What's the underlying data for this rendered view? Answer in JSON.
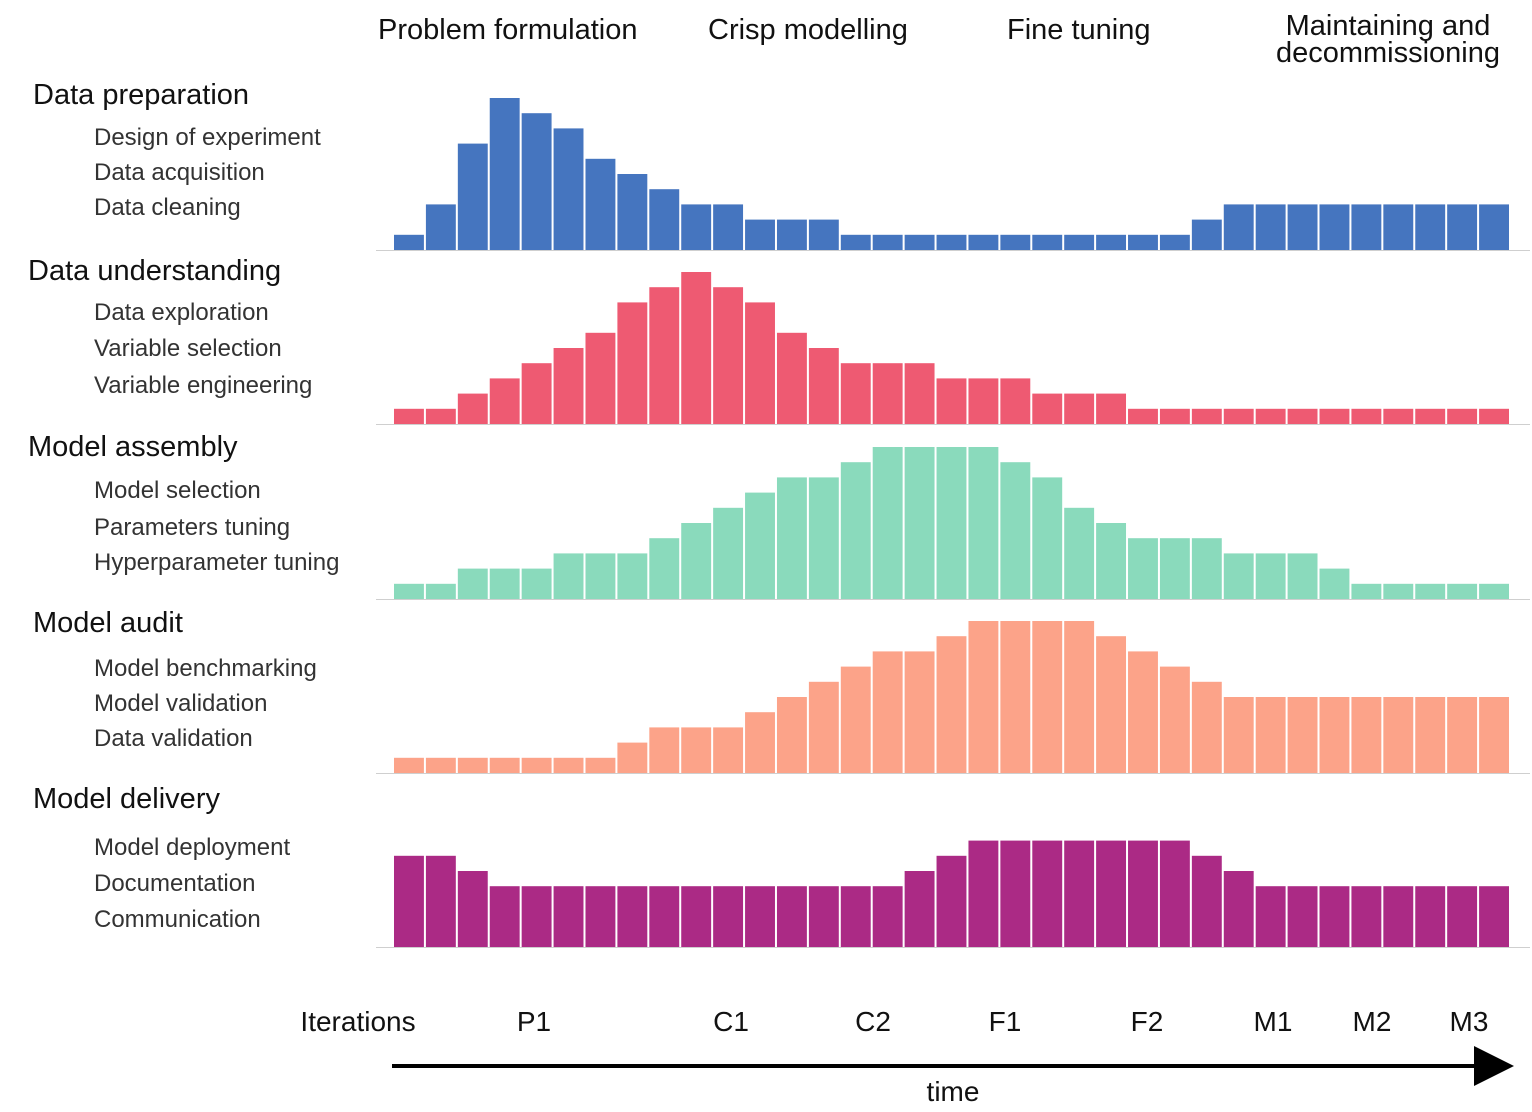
{
  "chart_data": {
    "type": "bar",
    "xlabel": "time",
    "iteration_axis_title": "Iterations",
    "phases": [
      "Problem formulation",
      "Crisp modelling",
      "Fine tuning",
      "Maintaining and decommissioning"
    ],
    "iterations": [
      "P1",
      "C1",
      "C2",
      "F1",
      "F2",
      "M1",
      "M2",
      "M3"
    ],
    "series": [
      {
        "name": "Data preparation",
        "tasks": [
          "Design of experiment",
          "Data acquisition",
          "Data cleaning"
        ],
        "color": "#4575bf",
        "values": [
          1,
          3,
          7,
          10,
          9,
          8,
          6,
          5,
          4,
          3,
          3,
          2,
          2,
          2,
          1,
          1,
          1,
          1,
          1,
          1,
          1,
          1,
          1,
          1,
          1,
          2,
          3,
          3,
          3,
          3,
          3,
          3,
          3,
          3,
          3
        ]
      },
      {
        "name": "Data understanding",
        "tasks": [
          "Data exploration",
          "Variable selection",
          "Variable engineering"
        ],
        "color": "#ee5a72",
        "values": [
          1,
          1,
          2,
          3,
          4,
          5,
          6,
          8,
          9,
          10,
          9,
          8,
          6,
          5,
          4,
          4,
          4,
          3,
          3,
          3,
          2,
          2,
          2,
          1,
          1,
          1,
          1,
          1,
          1,
          1,
          1,
          1,
          1,
          1,
          1
        ]
      },
      {
        "name": "Model assembly",
        "tasks": [
          "Model selection",
          "Parameters tuning",
          "Hyperparameter tuning"
        ],
        "color": "#8adabc",
        "values": [
          1,
          1,
          2,
          2,
          2,
          3,
          3,
          3,
          4,
          5,
          6,
          7,
          8,
          8,
          9,
          10,
          10,
          10,
          10,
          9,
          8,
          6,
          5,
          4,
          4,
          4,
          3,
          3,
          3,
          2,
          1,
          1,
          1,
          1,
          1
        ]
      },
      {
        "name": "Model audit",
        "tasks": [
          "Model benchmarking",
          "Model validation",
          "Data validation"
        ],
        "color": "#fca389",
        "values": [
          1,
          1,
          1,
          1,
          1,
          1,
          1,
          2,
          3,
          3,
          3,
          4,
          5,
          6,
          7,
          8,
          8,
          9,
          10,
          10,
          10,
          10,
          9,
          8,
          7,
          6,
          5,
          5,
          5,
          5,
          5,
          5,
          5,
          5,
          5
        ]
      },
      {
        "name": "Model delivery",
        "tasks": [
          "Model deployment",
          "Documentation",
          "Communication"
        ],
        "color": "#ab2a85",
        "values": [
          6,
          6,
          5,
          4,
          4,
          4,
          4,
          4,
          4,
          4,
          4,
          4,
          4,
          4,
          4,
          4,
          5,
          6,
          7,
          7,
          7,
          7,
          7,
          7,
          7,
          6,
          5,
          4,
          4,
          4,
          4,
          4,
          4,
          4,
          4
        ]
      }
    ],
    "ylim": [
      0,
      10
    ],
    "grid": false,
    "legend": "none"
  }
}
